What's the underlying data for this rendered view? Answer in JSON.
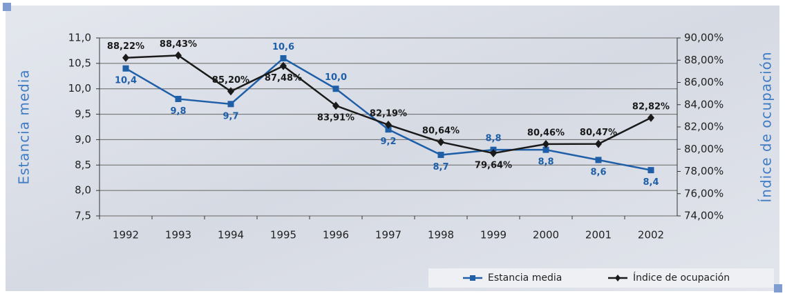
{
  "chart_data": {
    "type": "line",
    "categories": [
      "1992",
      "1993",
      "1994",
      "1995",
      "1996",
      "1997",
      "1998",
      "1999",
      "2000",
      "2001",
      "2002"
    ],
    "series": [
      {
        "name": "Estancia media",
        "color": "#1f5fa8",
        "values": [
          10.4,
          9.8,
          9.7,
          10.6,
          10.0,
          9.2,
          8.7,
          8.8,
          8.8,
          8.6,
          8.4
        ],
        "value_labels": [
          "10,4",
          "9,8",
          "9,7",
          "10,6",
          "10,0",
          "9,2",
          "8,7",
          "8,8",
          "8,8",
          "8,6",
          "8,4"
        ]
      },
      {
        "name": "Índice de ocupación",
        "color": "#1a1a1a",
        "axis": "y2",
        "values": [
          88.22,
          88.43,
          85.2,
          87.48,
          83.91,
          82.19,
          80.64,
          79.64,
          80.46,
          80.47,
          82.82
        ],
        "value_labels": [
          "88,22%",
          "88,43%",
          "85,20%",
          "87,48%",
          "83,91%",
          "82,19%",
          "80,64%",
          "79,64%",
          "80,46%",
          "80,47%",
          "82,82%"
        ]
      }
    ],
    "ylabel": "Estancia media",
    "y2label": "Índice de ocupación",
    "ylim": [
      7.5,
      11.0
    ],
    "yticks": [
      {
        "value": 7.5,
        "label": "7,5"
      },
      {
        "value": 8.0,
        "label": "8,0"
      },
      {
        "value": 8.5,
        "label": "8,5"
      },
      {
        "value": 9.0,
        "label": "9,0"
      },
      {
        "value": 9.5,
        "label": "9,5"
      },
      {
        "value": 10.0,
        "label": "10,0"
      },
      {
        "value": 10.5,
        "label": "10,5"
      },
      {
        "value": 11.0,
        "label": "11,0"
      }
    ],
    "y2lim": [
      74,
      90
    ],
    "y2ticks": [
      {
        "value": 74,
        "label": "74,00%"
      },
      {
        "value": 76,
        "label": "76,00%"
      },
      {
        "value": 78,
        "label": "78,00%"
      },
      {
        "value": 80,
        "label": "80,00%"
      },
      {
        "value": 82,
        "label": "82,00%"
      },
      {
        "value": 84,
        "label": "84,00%"
      },
      {
        "value": 86,
        "label": "86,00%"
      },
      {
        "value": 88,
        "label": "88,00%"
      },
      {
        "value": 90,
        "label": "90,00%"
      }
    ],
    "grid": true,
    "legend": "bottom-right"
  }
}
